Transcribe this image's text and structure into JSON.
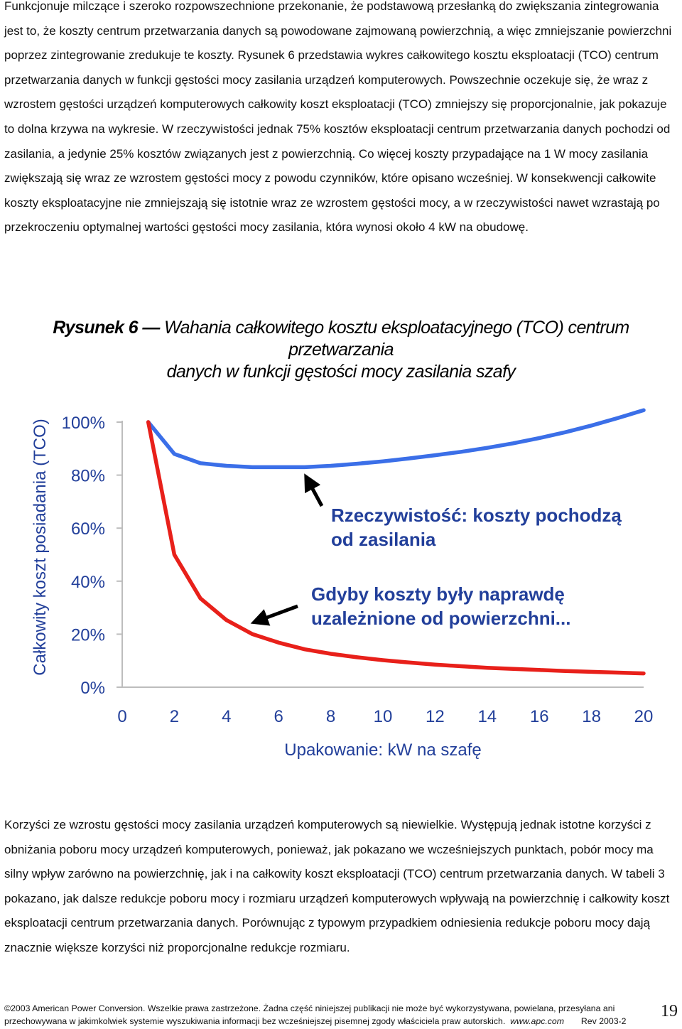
{
  "paragraph_1": "Funkcjonuje milczące i szeroko rozpowszechnione przekonanie, że podstawową przesłanką do zwiększania zintegrowania jest to, że koszty centrum przetwarzania danych są powodowane zajmowaną powierzchnią, a więc zmniejszanie powierzchni poprzez zintegrowanie zredukuje te koszty. Rysunek 6 przedstawia wykres całkowitego kosztu eksploatacji (TCO) centrum przetwarzania danych w funkcji gęstości mocy zasilania urządzeń komputerowych. Powszechnie oczekuje się, że wraz z wzrostem gęstości urządzeń komputerowych całkowity koszt eksploatacji (TCO) zmniejszy się proporcjonalnie, jak pokazuje to dolna krzywa na wykresie. W rzeczywistości jednak 75% kosztów eksploatacji centrum przetwarzania danych pochodzi od zasilania, a jedynie 25% kosztów związanych jest z powierzchnią. Co więcej koszty przypadające na 1 W mocy zasilania zwiększają się wraz ze wzrostem gęstości mocy z powodu czynników, które opisano wcześniej. W konsekwencji całkowite koszty eksploatacyjne nie zmniejszają się istotnie wraz ze wzrostem gęstości mocy, a w rzeczywistości nawet wzrastają po przekroczeniu optymalnej wartości gęstości mocy zasilania, która wynosi około 4 kW na obudowę.",
  "figure": {
    "label": "Rysunek 6 — ",
    "title_line1": "Wahania całkowitego kosztu eksploatacyjnego (TCO) centrum przetwarzania",
    "title_line2": "danych w funkcji gęstości mocy zasilania szafy"
  },
  "chart_data": {
    "type": "line",
    "ylabel": "Całkowity koszt posiadania (TCO)",
    "xlabel": "Upakowanie: kW na szafę",
    "x_ticks": [
      "0",
      "2",
      "4",
      "6",
      "8",
      "10",
      "12",
      "14",
      "16",
      "18",
      "20"
    ],
    "y_ticks": [
      "0%",
      "20%",
      "40%",
      "60%",
      "80%",
      "100%"
    ],
    "xlim": [
      0,
      20
    ],
    "ylim": [
      0,
      100
    ],
    "grid": false,
    "series": [
      {
        "color": "#3b6fe8",
        "x": [
          1,
          2,
          3,
          4,
          5,
          6,
          7,
          8,
          9,
          10,
          11,
          12,
          13,
          14,
          15,
          16,
          17,
          18,
          19,
          20
        ],
        "y": [
          100,
          88,
          84.5,
          83.5,
          83,
          83,
          83,
          83.5,
          84.3,
          85.2,
          86.3,
          87.5,
          88.8,
          90.3,
          92,
          94,
          96.2,
          98.7,
          101.5,
          104.5
        ]
      },
      {
        "color": "#e8201a",
        "x": [
          1,
          2,
          3,
          4,
          5,
          6,
          7,
          8,
          9,
          10,
          11,
          12,
          13,
          14,
          15,
          16,
          17,
          18,
          19,
          20
        ],
        "y": [
          100,
          50,
          33.5,
          25.3,
          20,
          16.8,
          14.3,
          12.6,
          11.3,
          10.2,
          9.3,
          8.5,
          7.9,
          7.3,
          6.9,
          6.5,
          6.1,
          5.8,
          5.5,
          5.2
        ]
      }
    ],
    "annotations": [
      {
        "line1": "Rzeczywistość: koszty pochodzą",
        "line2": "od zasilania"
      },
      {
        "line1": "Gdyby koszty były naprawdę",
        "line2": "uzależnione od powierzchni..."
      }
    ]
  },
  "paragraph_2": "Korzyści ze wzrostu gęstości mocy zasilania urządzeń komputerowych są niewielkie. Występują jednak istotne korzyści z obniżania poboru mocy urządzeń komputerowych, ponieważ, jak pokazano we wcześniejszych punktach, pobór mocy ma silny wpływ zarówno na powierzchnię, jak i na całkowity koszt eksploatacji (TCO) centrum przetwarzania danych. W tabeli 3 pokazano, jak dalsze redukcje poboru mocy i rozmiaru urządzeń komputerowych wpływają na powierzchnię i całkowity koszt eksploatacji centrum przetwarzania danych. Porównując z typowym przypadkiem odniesienia redukcje poboru mocy dają znacznie większe korzyści niż proporcjonalne redukcje rozmiaru.",
  "footer": {
    "line1": "2003 American Power Conversion. Wszelkie prawa zastrzeżone. Żadna część niniejszej publikacji nie może być wykorzystywana, powielana, przesyłana ani",
    "line2": "przechowywana w jakimkolwiek systemie wyszukiwania informacji bez wcześniejszej pisemnej zgody właściciela praw autorskich.",
    "url": "www.apc.com",
    "rev": "Rev 2003-2"
  },
  "page_number": "19"
}
